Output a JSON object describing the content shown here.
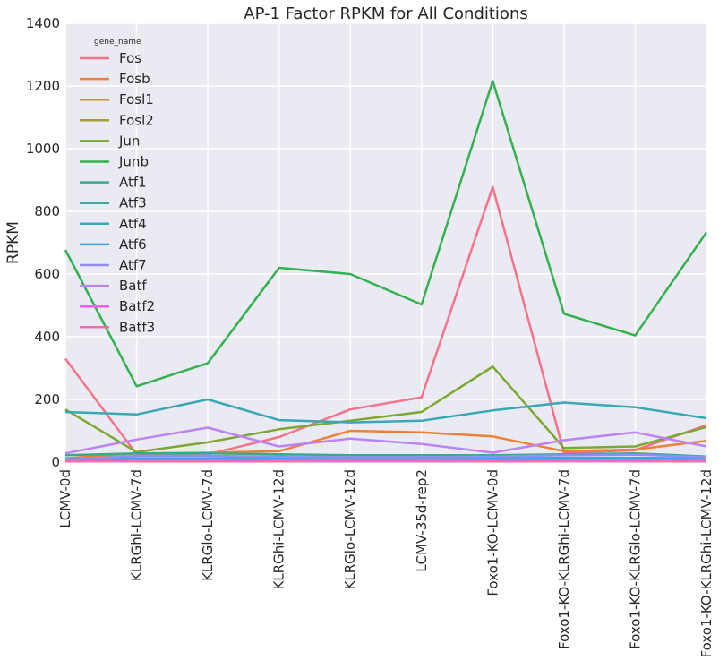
{
  "chart_data": {
    "type": "line",
    "title": "AP-1 Factor RPKM for All Conditions",
    "xlabel": "",
    "ylabel": "RPKM",
    "ylim": [
      0,
      1400
    ],
    "yticks": [
      0,
      200,
      400,
      600,
      800,
      1000,
      1200,
      1400
    ],
    "grid": true,
    "legend_title": "gene_name",
    "legend_position": "top-left",
    "categories": [
      "LCMV-0d",
      "KLRGhi-LCMV-7d",
      "KLRGlo-LCMV-7d",
      "KLRGhi-LCMV-12d",
      "KLRGlo-LCMV-12d",
      "LCMV-35d-rep2",
      "Foxo1-KO-LCMV-0d",
      "Foxo1-KO-KLRGhi-LCMV-7d",
      "Foxo1-KO-KLRGlo-LCMV-7d",
      "Foxo1-KO-KLRGhi-LCMV-12d"
    ],
    "series": [
      {
        "name": "Fos",
        "color": "#f77189",
        "values": [
          330,
          25,
          25,
          80,
          168,
          207,
          878,
          30,
          38,
          118
        ]
      },
      {
        "name": "Fosb",
        "color": "#f07f36",
        "values": [
          12,
          28,
          30,
          35,
          100,
          95,
          82,
          35,
          40,
          68
        ]
      },
      {
        "name": "Fosl1",
        "color": "#c39532",
        "values": [
          3,
          3,
          3,
          3,
          3,
          3,
          3,
          3,
          3,
          3
        ]
      },
      {
        "name": "Fosl2",
        "color": "#a3a031",
        "values": [
          8,
          10,
          10,
          10,
          10,
          10,
          10,
          10,
          10,
          10
        ]
      },
      {
        "name": "Jun",
        "color": "#7ca831",
        "values": [
          168,
          32,
          63,
          105,
          132,
          160,
          305,
          45,
          50,
          112
        ]
      },
      {
        "name": "Junb",
        "color": "#33b04f",
        "values": [
          677,
          242,
          316,
          620,
          600,
          503,
          1216,
          473,
          404,
          733
        ]
      },
      {
        "name": "Atf1",
        "color": "#35ac89",
        "values": [
          22,
          28,
          28,
          25,
          22,
          22,
          22,
          25,
          28,
          18
        ]
      },
      {
        "name": "Atf3",
        "color": "#37aaa2",
        "values": [
          3,
          3,
          3,
          3,
          3,
          3,
          3,
          3,
          3,
          3
        ]
      },
      {
        "name": "Atf4",
        "color": "#38a8b4",
        "values": [
          160,
          152,
          200,
          134,
          127,
          132,
          165,
          190,
          175,
          140
        ]
      },
      {
        "name": "Atf6",
        "color": "#3ba3ec",
        "values": [
          10,
          12,
          12,
          12,
          12,
          12,
          12,
          14,
          14,
          12
        ]
      },
      {
        "name": "Atf7",
        "color": "#8e8ff4",
        "values": [
          8,
          20,
          20,
          18,
          16,
          16,
          18,
          22,
          24,
          16
        ]
      },
      {
        "name": "Batf",
        "color": "#bb83f4",
        "values": [
          28,
          72,
          110,
          50,
          75,
          58,
          30,
          70,
          95,
          50
        ]
      },
      {
        "name": "Batf2",
        "color": "#f45deb",
        "values": [
          2,
          2,
          2,
          2,
          2,
          2,
          2,
          2,
          2,
          2
        ]
      },
      {
        "name": "Batf3",
        "color": "#f66bb9",
        "values": [
          2,
          2,
          2,
          2,
          2,
          2,
          2,
          2,
          2,
          2
        ]
      }
    ]
  }
}
